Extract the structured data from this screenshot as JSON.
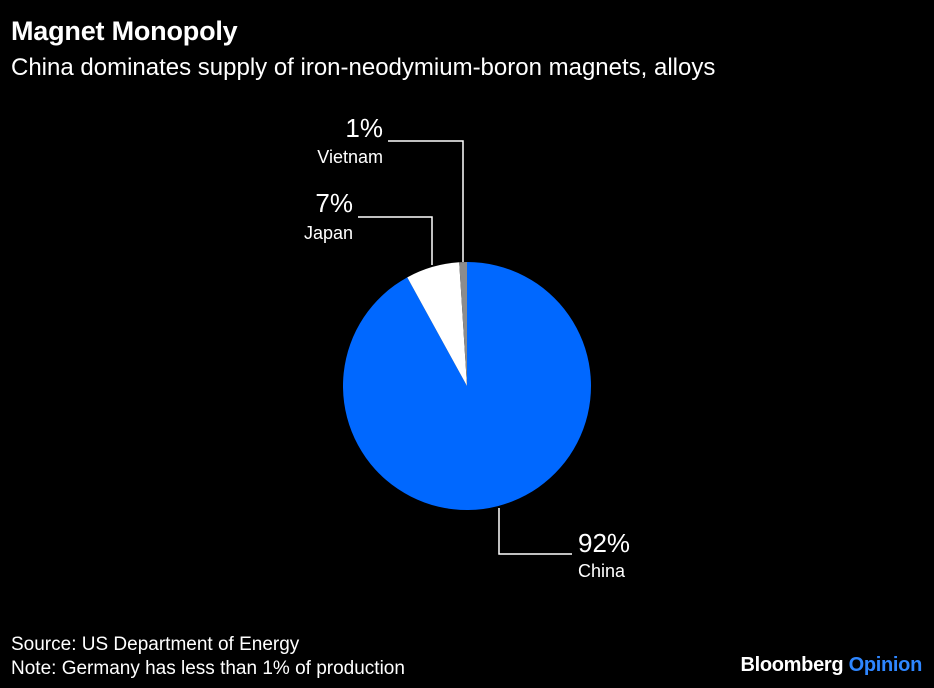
{
  "header": {
    "title": "Magnet Monopoly",
    "subtitle": "China dominates supply of iron-neodymium-boron magnets, alloys"
  },
  "footer": {
    "source": "Source: US Department of Energy",
    "note": "Note: Germany has less than 1% of production"
  },
  "logo": {
    "brand": "Bloomberg",
    "product": "Opinion"
  },
  "colors": {
    "background": "#000000",
    "china": "#0068ff",
    "japan": "#ffffff",
    "vietnam": "#8c8c8c",
    "leader": "#ffffff",
    "text": "#ffffff",
    "opinion": "#2e86ff"
  },
  "chart_data": {
    "type": "pie",
    "title": "Magnet Monopoly",
    "subtitle": "China dominates supply of iron-neodymium-boron magnets, alloys",
    "start_angle_deg": 0,
    "direction": "clockwise",
    "slices": [
      {
        "label": "China",
        "value": 92,
        "value_label": "92%",
        "color": "#0068ff"
      },
      {
        "label": "Japan",
        "value": 7,
        "value_label": "7%",
        "color": "#ffffff"
      },
      {
        "label": "Vietnam",
        "value": 1,
        "value_label": "1%",
        "color": "#8c8c8c"
      }
    ]
  }
}
